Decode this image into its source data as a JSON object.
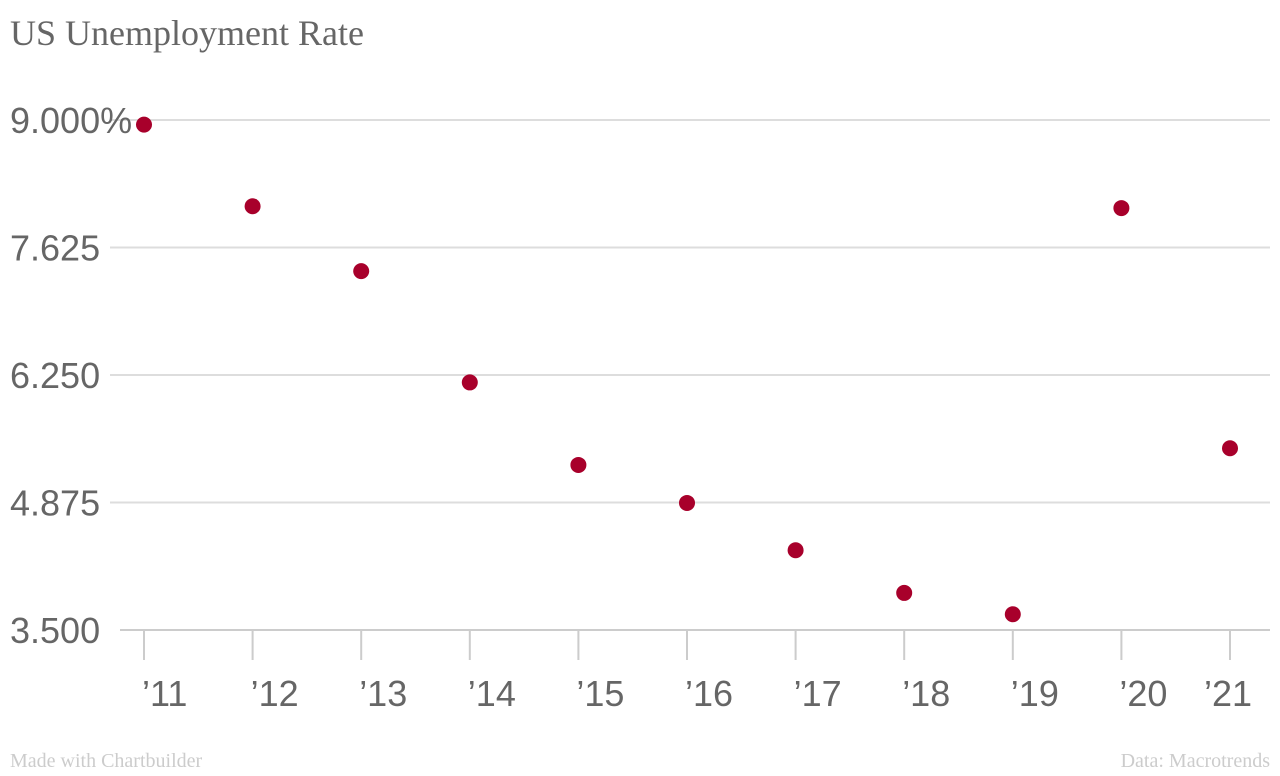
{
  "chart_data": {
    "type": "scatter",
    "title": "US Unemployment Rate",
    "xlabel": "",
    "ylabel": "",
    "categories": [
      "’11",
      "’12",
      "’13",
      "’14",
      "’15",
      "’16",
      "’17",
      "’18",
      "’19",
      "’20",
      "’21"
    ],
    "series": [
      {
        "values": [
          8.95,
          8.07,
          7.37,
          6.17,
          5.28,
          4.87,
          4.36,
          3.9,
          3.67,
          8.05,
          5.46
        ]
      }
    ],
    "y_ticks": [
      3.5,
      4.875,
      6.25,
      7.625,
      9.0
    ],
    "y_tick_labels": [
      "3.500",
      "4.875",
      "6.250",
      "7.625",
      "9.000%"
    ],
    "ylim": [
      3.5,
      9.0
    ],
    "grid": true,
    "legend": "none",
    "point_color": "#a8002b",
    "grid_color": "#dddddd",
    "axis_color": "#cccccc",
    "text_color": "#666666"
  },
  "footer": {
    "left": "Made with Chartbuilder",
    "right": "Data: Macrotrends"
  }
}
